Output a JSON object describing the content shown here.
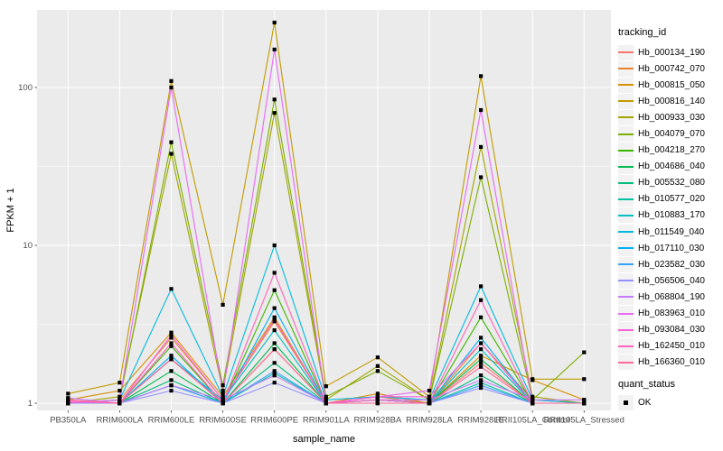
{
  "chart_data": {
    "type": "line",
    "title": "",
    "xlabel": "sample_name",
    "ylabel": "FPKM + 1",
    "yscale": "log10",
    "y_ticks": [
      1,
      10,
      100
    ],
    "ylim": [
      0.9,
      320
    ],
    "grid": "major-and-minor",
    "panel_bg": "#EBEBEB",
    "grid_color": "#FFFFFF",
    "tick_label_color": "#4D4D4D",
    "point_marker": "filled-square",
    "point_color": "#000000",
    "legend_color_title": "tracking_id",
    "legend_shape_title": "quant_status",
    "quant_status_label": "OK",
    "legend_position": "right",
    "categories": [
      "PB350LA",
      "RRIM600LA",
      "RRIM600LE",
      "RRIM600SE",
      "RRIM600PE",
      "RRIM901LA",
      "RRIM928BA",
      "RRIM928LA",
      "RRIM928LE",
      "RRII105LA_Control",
      "RRII105LA_Stressed"
    ],
    "series": [
      {
        "name": "Hb_000134_190",
        "color": "#F8766D",
        "values": [
          1.0,
          1.0,
          1.9,
          1.0,
          2.2,
          1.0,
          1.05,
          1.0,
          1.8,
          1.0,
          1.0
        ]
      },
      {
        "name": "Hb_000742_070",
        "color": "#EA8331",
        "values": [
          1.0,
          1.05,
          2.6,
          1.05,
          3.3,
          1.0,
          1.1,
          1.0,
          2.4,
          1.05,
          1.0
        ]
      },
      {
        "name": "Hb_000815_050",
        "color": "#D89000",
        "values": [
          1.05,
          1.2,
          2.8,
          1.1,
          3.5,
          1.0,
          1.15,
          1.0,
          2.0,
          1.4,
          1.05
        ]
      },
      {
        "name": "Hb_000816_140",
        "color": "#C09B00",
        "values": [
          1.15,
          1.35,
          110,
          4.2,
          258,
          1.28,
          1.95,
          1.1,
          118,
          1.42,
          1.42
        ]
      },
      {
        "name": "Hb_000933_030",
        "color": "#A3A500",
        "values": [
          1.0,
          1.1,
          38,
          1.2,
          69,
          1.05,
          1.72,
          1.05,
          42,
          1.1,
          1.0
        ]
      },
      {
        "name": "Hb_004079_070",
        "color": "#7CAE00",
        "values": [
          1.0,
          1.05,
          45,
          1.3,
          84,
          1.1,
          1.6,
          1.05,
          27,
          1.05,
          2.1
        ]
      },
      {
        "name": "Hb_004218_270",
        "color": "#39B600",
        "values": [
          1.0,
          1.0,
          2.3,
          1.0,
          5.2,
          1.0,
          1.05,
          1.0,
          3.5,
          1.0,
          1.0
        ]
      },
      {
        "name": "Hb_004686_040",
        "color": "#00BB4E",
        "values": [
          1.0,
          1.0,
          1.6,
          1.0,
          2.4,
          1.0,
          1.0,
          1.0,
          1.9,
          1.0,
          1.0
        ]
      },
      {
        "name": "Hb_005532_080",
        "color": "#00BF7D",
        "values": [
          1.0,
          1.0,
          1.4,
          1.0,
          1.8,
          1.0,
          1.0,
          1.0,
          1.5,
          1.0,
          1.0
        ]
      },
      {
        "name": "Hb_010577_020",
        "color": "#00C1A3",
        "values": [
          1.0,
          1.0,
          1.3,
          1.0,
          1.55,
          1.0,
          1.0,
          1.0,
          1.35,
          1.0,
          1.0
        ]
      },
      {
        "name": "Hb_010883_170",
        "color": "#00BFC4",
        "values": [
          1.0,
          1.0,
          1.9,
          1.05,
          2.9,
          1.0,
          1.05,
          1.0,
          2.2,
          1.0,
          1.0
        ]
      },
      {
        "name": "Hb_011549_040",
        "color": "#00BAE0",
        "values": [
          1.0,
          1.05,
          5.3,
          1.1,
          10.0,
          1.05,
          1.1,
          1.05,
          5.5,
          1.05,
          1.0
        ]
      },
      {
        "name": "Hb_017110_030",
        "color": "#00B0F6",
        "values": [
          1.0,
          1.0,
          2.0,
          1.0,
          4.0,
          1.0,
          1.05,
          1.0,
          2.6,
          1.0,
          1.0
        ]
      },
      {
        "name": "Hb_023582_030",
        "color": "#35A2FF",
        "values": [
          1.0,
          1.0,
          1.3,
          1.0,
          1.6,
          1.0,
          1.0,
          1.0,
          1.3,
          1.0,
          1.0
        ]
      },
      {
        "name": "Hb_056506_040",
        "color": "#9590FF",
        "values": [
          1.0,
          1.0,
          1.2,
          1.0,
          1.35,
          1.0,
          1.0,
          1.0,
          1.25,
          1.0,
          1.0
        ]
      },
      {
        "name": "Hb_068804_190",
        "color": "#C77CFF",
        "values": [
          1.08,
          1.0,
          1.3,
          1.05,
          1.5,
          1.0,
          1.05,
          1.05,
          1.4,
          1.05,
          1.05
        ]
      },
      {
        "name": "Hb_083963_010",
        "color": "#E76BF3",
        "values": [
          1.0,
          1.05,
          100,
          1.15,
          174,
          1.0,
          1.1,
          1.2,
          72,
          1.0,
          1.0
        ]
      },
      {
        "name": "Hb_093084_030",
        "color": "#FA62DB",
        "values": [
          1.02,
          1.0,
          2.7,
          1.05,
          3.4,
          1.0,
          1.1,
          1.1,
          2.4,
          1.0,
          1.0
        ]
      },
      {
        "name": "Hb_162450_010",
        "color": "#FF62BC",
        "values": [
          1.03,
          1.0,
          2.4,
          1.0,
          6.7,
          1.0,
          1.05,
          1.0,
          4.5,
          1.0,
          1.0
        ]
      },
      {
        "name": "Hb_166360_010",
        "color": "#FF6A98",
        "values": [
          1.05,
          1.0,
          1.9,
          1.0,
          2.2,
          1.0,
          1.0,
          1.0,
          1.7,
          1.0,
          1.0
        ]
      }
    ]
  }
}
